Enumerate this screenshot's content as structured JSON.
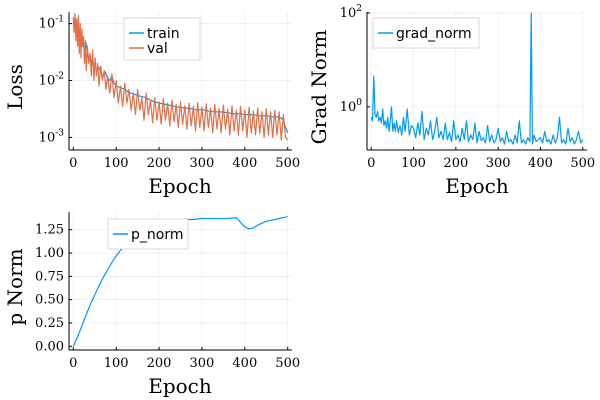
{
  "colors": {
    "blue": "#009AF9",
    "orange": "#E26F46"
  },
  "chart_data": [
    {
      "type": "line",
      "ylabel": "Loss",
      "xlabel": "Epoch",
      "yscale": "log",
      "xlim": [
        -10,
        510
      ],
      "ylim": [
        0.0006,
        0.16
      ],
      "xticks": [
        0,
        100,
        200,
        300,
        400,
        500
      ],
      "yticks": [
        0.001,
        0.01,
        0.1
      ],
      "ytick_labels": {
        "base": "10",
        "exps": [
          "-3",
          "-2",
          "-1"
        ]
      },
      "grid": true,
      "legend_position": "top-center",
      "series": [
        {
          "name": "train",
          "color": "#009AF9",
          "x": [
            0,
            3,
            6,
            9,
            12,
            15,
            18,
            21,
            24,
            27,
            30,
            33,
            36,
            39,
            42,
            45,
            50,
            55,
            60,
            65,
            70,
            75,
            80,
            85,
            90,
            95,
            100,
            110,
            120,
            130,
            140,
            150,
            160,
            170,
            180,
            190,
            200,
            215,
            230,
            245,
            260,
            275,
            290,
            300,
            315,
            330,
            345,
            360,
            375,
            390,
            405,
            420,
            435,
            450,
            465,
            475,
            485,
            490,
            495,
            500
          ],
          "y": [
            0.11,
            0.09,
            0.12,
            0.07,
            0.08,
            0.06,
            0.05,
            0.055,
            0.04,
            0.035,
            0.045,
            0.03,
            0.025,
            0.028,
            0.02,
            0.022,
            0.018,
            0.015,
            0.017,
            0.013,
            0.012,
            0.014,
            0.011,
            0.01,
            0.012,
            0.009,
            0.008,
            0.0075,
            0.007,
            0.0062,
            0.0058,
            0.0055,
            0.0052,
            0.005,
            0.0045,
            0.0042,
            0.004,
            0.0038,
            0.0036,
            0.0034,
            0.0033,
            0.0032,
            0.003,
            0.0031,
            0.0029,
            0.0028,
            0.0028,
            0.0027,
            0.0026,
            0.0026,
            0.0025,
            0.0025,
            0.0024,
            0.0024,
            0.0023,
            0.0023,
            0.0022,
            0.002,
            0.0015,
            0.0012
          ]
        },
        {
          "name": "val",
          "color": "#E26F46",
          "x": [
            0,
            2,
            4,
            6,
            8,
            10,
            12,
            14,
            16,
            18,
            20,
            22,
            24,
            26,
            28,
            30,
            33,
            36,
            39,
            42,
            45,
            48,
            51,
            54,
            57,
            60,
            64,
            68,
            72,
            76,
            80,
            85,
            90,
            95,
            100,
            105,
            110,
            115,
            120,
            125,
            130,
            135,
            140,
            145,
            150,
            155,
            160,
            165,
            170,
            175,
            180,
            185,
            190,
            195,
            200,
            205,
            210,
            215,
            220,
            225,
            230,
            235,
            240,
            245,
            250,
            255,
            260,
            265,
            270,
            275,
            280,
            285,
            290,
            295,
            300,
            305,
            310,
            315,
            320,
            325,
            330,
            335,
            340,
            345,
            350,
            355,
            360,
            365,
            370,
            375,
            380,
            385,
            390,
            395,
            400,
            405,
            410,
            415,
            420,
            425,
            430,
            435,
            440,
            445,
            450,
            455,
            460,
            465,
            470,
            475,
            480,
            485,
            490,
            495,
            500
          ],
          "y": [
            0.13,
            0.07,
            0.15,
            0.05,
            0.12,
            0.04,
            0.14,
            0.03,
            0.1,
            0.025,
            0.08,
            0.04,
            0.06,
            0.02,
            0.05,
            0.015,
            0.04,
            0.02,
            0.03,
            0.012,
            0.035,
            0.01,
            0.025,
            0.012,
            0.02,
            0.008,
            0.018,
            0.01,
            0.015,
            0.007,
            0.012,
            0.006,
            0.013,
            0.005,
            0.01,
            0.004,
            0.008,
            0.0035,
            0.009,
            0.004,
            0.007,
            0.003,
            0.006,
            0.0025,
            0.007,
            0.003,
            0.005,
            0.002,
            0.006,
            0.0025,
            0.0045,
            0.0018,
            0.005,
            0.002,
            0.0042,
            0.0017,
            0.0048,
            0.002,
            0.004,
            0.0016,
            0.0045,
            0.0019,
            0.0038,
            0.0015,
            0.0042,
            0.0017,
            0.0036,
            0.0014,
            0.004,
            0.0016,
            0.0035,
            0.0013,
            0.0041,
            0.0015,
            0.0034,
            0.0013,
            0.0039,
            0.0015,
            0.0033,
            0.0012,
            0.0038,
            0.0014,
            0.0032,
            0.0012,
            0.0037,
            0.0014,
            0.0031,
            0.0011,
            0.0036,
            0.0013,
            0.003,
            0.0011,
            0.0035,
            0.0013,
            0.003,
            0.001,
            0.0034,
            0.0012,
            0.0029,
            0.0011,
            0.0033,
            0.0012,
            0.0028,
            0.001,
            0.0032,
            0.0011,
            0.0028,
            0.001,
            0.003,
            0.0011,
            0.0028,
            0.0009,
            0.0025,
            0.001,
            0.0009
          ]
        }
      ]
    },
    {
      "type": "line",
      "ylabel": "Grad Norm",
      "xlabel": "Epoch",
      "yscale": "log",
      "xlim": [
        -10,
        510
      ],
      "ylim": [
        0.12,
        105
      ],
      "xticks": [
        0,
        100,
        200,
        300,
        400,
        500
      ],
      "yticks": [
        1,
        100
      ],
      "ytick_labels": {
        "base": "10",
        "exps": [
          "0",
          "2"
        ]
      },
      "grid": true,
      "legend_position": "top-left",
      "series": [
        {
          "name": "grad_norm",
          "color": "#009AF9",
          "x": [
            0,
            3,
            6,
            9,
            12,
            15,
            18,
            21,
            24,
            27,
            30,
            33,
            36,
            39,
            42,
            45,
            48,
            51,
            54,
            57,
            60,
            64,
            68,
            72,
            76,
            80,
            85,
            90,
            95,
            100,
            105,
            110,
            115,
            120,
            125,
            130,
            135,
            140,
            145,
            150,
            155,
            160,
            165,
            170,
            175,
            180,
            185,
            190,
            195,
            200,
            205,
            210,
            215,
            220,
            225,
            230,
            235,
            240,
            245,
            250,
            255,
            260,
            265,
            270,
            275,
            280,
            285,
            290,
            295,
            300,
            305,
            310,
            315,
            320,
            325,
            330,
            335,
            340,
            345,
            350,
            355,
            360,
            365,
            370,
            375,
            378,
            381,
            385,
            390,
            395,
            400,
            405,
            410,
            415,
            420,
            425,
            430,
            435,
            440,
            445,
            450,
            455,
            460,
            465,
            470,
            475,
            480,
            485,
            490,
            495,
            500
          ],
          "y": [
            0.6,
            0.5,
            4.5,
            0.7,
            0.6,
            0.8,
            0.5,
            0.6,
            0.45,
            0.9,
            0.4,
            0.5,
            0.35,
            0.6,
            0.3,
            0.5,
            1.0,
            0.3,
            0.45,
            0.3,
            0.5,
            0.28,
            0.4,
            0.25,
            0.6,
            0.3,
            0.9,
            0.25,
            0.4,
            0.35,
            0.22,
            0.45,
            0.25,
            0.8,
            0.2,
            0.35,
            0.25,
            0.5,
            0.2,
            0.3,
            0.6,
            0.22,
            0.3,
            0.2,
            0.45,
            0.2,
            0.28,
            0.18,
            0.5,
            0.2,
            0.25,
            0.18,
            0.35,
            0.2,
            0.5,
            0.18,
            0.25,
            0.2,
            0.45,
            0.17,
            0.3,
            0.19,
            0.22,
            0.17,
            0.4,
            0.18,
            0.25,
            0.17,
            0.2,
            0.35,
            0.18,
            0.22,
            0.16,
            0.3,
            0.18,
            0.2,
            0.16,
            0.25,
            0.17,
            0.5,
            0.17,
            0.2,
            0.16,
            0.22,
            0.18,
            100,
            0.16,
            0.25,
            0.18,
            0.2,
            0.22,
            0.17,
            0.3,
            0.18,
            0.2,
            0.16,
            0.25,
            0.17,
            0.22,
            0.6,
            0.17,
            0.2,
            0.16,
            0.35,
            0.18,
            0.22,
            0.16,
            0.2,
            0.3,
            0.17,
            0.2
          ]
        }
      ]
    },
    {
      "type": "line",
      "ylabel": "p Norm",
      "xlabel": "Epoch",
      "yscale": "linear",
      "xlim": [
        -10,
        510
      ],
      "ylim": [
        -0.04,
        1.44
      ],
      "xticks": [
        0,
        100,
        200,
        300,
        400,
        500
      ],
      "yticks": [
        0.0,
        0.25,
        0.5,
        0.75,
        1.0,
        1.25
      ],
      "ytick_labels": {
        "values": [
          "0.00",
          "0.25",
          "0.50",
          "0.75",
          "1.00",
          "1.25"
        ]
      },
      "grid": true,
      "legend_position": "top-center",
      "series": [
        {
          "name": "p_norm",
          "color": "#009AF9",
          "x": [
            0,
            10,
            20,
            30,
            40,
            50,
            60,
            70,
            80,
            90,
            100,
            110,
            120,
            130,
            140,
            150,
            160,
            170,
            180,
            190,
            200,
            220,
            240,
            260,
            280,
            300,
            320,
            340,
            360,
            380,
            390,
            400,
            410,
            420,
            430,
            440,
            450,
            460,
            470,
            480,
            490,
            500
          ],
          "y": [
            0.0,
            0.1,
            0.22,
            0.34,
            0.45,
            0.55,
            0.65,
            0.74,
            0.82,
            0.9,
            0.97,
            1.03,
            1.08,
            1.13,
            1.17,
            1.21,
            1.24,
            1.27,
            1.29,
            1.31,
            1.32,
            1.34,
            1.35,
            1.36,
            1.36,
            1.37,
            1.37,
            1.37,
            1.37,
            1.38,
            1.33,
            1.28,
            1.26,
            1.27,
            1.3,
            1.32,
            1.34,
            1.35,
            1.36,
            1.37,
            1.38,
            1.39
          ]
        }
      ]
    }
  ]
}
